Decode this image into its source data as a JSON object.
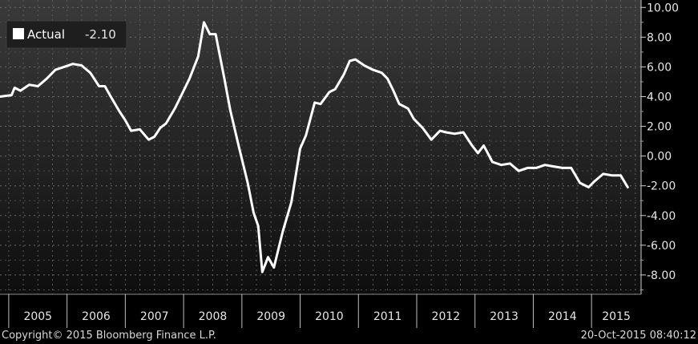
{
  "chart_data": {
    "type": "line",
    "title": "",
    "xlabel": "",
    "ylabel": "",
    "x_range": [
      2004.85,
      2015.85
    ],
    "ylim": [
      -9.3,
      10.5
    ],
    "y_ticks": [
      10,
      8,
      6,
      4,
      2,
      0,
      -2,
      -4,
      -6,
      -8
    ],
    "y_tick_labels": [
      "10.00",
      "8.00",
      "6.00",
      "4.00",
      "2.00",
      "0.00",
      "-2.00",
      "-4.00",
      "-6.00",
      "-8.00"
    ],
    "x_tick_labels": [
      "2005",
      "2006",
      "2007",
      "2008",
      "2009",
      "2010",
      "2011",
      "2012",
      "2013",
      "2014",
      "2015"
    ],
    "grid": true,
    "legend": {
      "placement": "top-left",
      "label": "Actual",
      "value": "-2.10"
    },
    "series": [
      {
        "name": "Actual",
        "color": "#ffffff",
        "x": [
          2004.85,
          2005.05,
          2005.1,
          2005.2,
          2005.35,
          2005.5,
          2005.65,
          2005.8,
          2005.95,
          2006.1,
          2006.25,
          2006.4,
          2006.55,
          2006.65,
          2006.75,
          2006.9,
          2007.0,
          2007.1,
          2007.25,
          2007.4,
          2007.5,
          2007.6,
          2007.7,
          2007.85,
          2007.95,
          2008.1,
          2008.25,
          2008.35,
          2008.45,
          2008.55,
          2008.62,
          2008.7,
          2008.8,
          2008.95,
          2009.1,
          2009.2,
          2009.28,
          2009.35,
          2009.45,
          2009.55,
          2009.7,
          2009.85,
          2010.0,
          2010.1,
          2010.25,
          2010.35,
          2010.5,
          2010.6,
          2010.75,
          2010.85,
          2010.95,
          2011.1,
          2011.25,
          2011.4,
          2011.5,
          2011.6,
          2011.7,
          2011.85,
          2011.95,
          2012.1,
          2012.25,
          2012.4,
          2012.5,
          2012.65,
          2012.8,
          2012.95,
          2013.05,
          2013.15,
          2013.3,
          2013.45,
          2013.6,
          2013.75,
          2013.9,
          2014.05,
          2014.2,
          2014.35,
          2014.5,
          2014.65,
          2014.8,
          2014.95,
          2015.05,
          2015.2,
          2015.35,
          2015.5,
          2015.62
        ],
        "y": [
          4.0,
          4.1,
          4.6,
          4.4,
          4.8,
          4.7,
          5.2,
          5.8,
          6.0,
          6.2,
          6.1,
          5.6,
          4.7,
          4.7,
          4.0,
          3.0,
          2.4,
          1.7,
          1.8,
          1.1,
          1.3,
          1.9,
          2.2,
          3.2,
          4.0,
          5.2,
          6.7,
          9.0,
          8.2,
          8.2,
          6.8,
          5.2,
          3.1,
          0.6,
          -1.8,
          -3.8,
          -4.7,
          -7.8,
          -6.8,
          -7.5,
          -5.1,
          -3.1,
          0.5,
          1.4,
          3.6,
          3.5,
          4.3,
          4.5,
          5.5,
          6.4,
          6.5,
          6.1,
          5.8,
          5.6,
          5.2,
          4.4,
          3.5,
          3.2,
          2.5,
          1.9,
          1.1,
          1.7,
          1.6,
          1.5,
          1.6,
          0.7,
          0.2,
          0.7,
          -0.4,
          -0.6,
          -0.5,
          -1.0,
          -0.8,
          -0.8,
          -0.6,
          -0.7,
          -0.8,
          -0.8,
          -1.8,
          -2.1,
          -1.7,
          -1.2,
          -1.3,
          -1.3,
          -2.1
        ]
      }
    ]
  },
  "footer": {
    "copyright": "Copyright© 2015 Bloomberg Finance L.P.",
    "timestamp": "20-Oct-2015 08:40:12"
  }
}
